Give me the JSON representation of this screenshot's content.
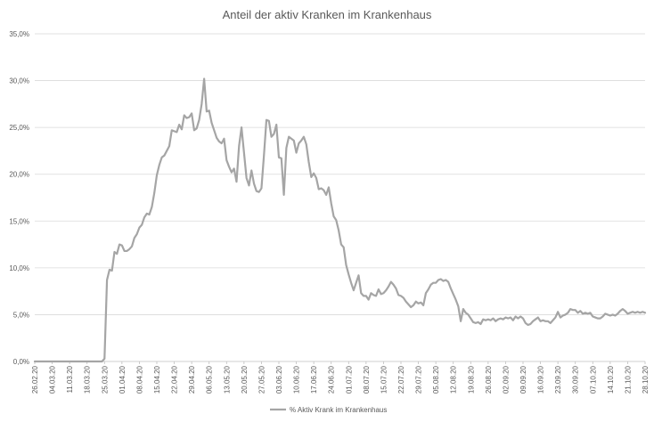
{
  "chart_data": {
    "type": "line",
    "title": "Anteil der aktiv Kranken im Krankenhaus",
    "xlabel": "",
    "ylabel": "",
    "ylim": [
      0,
      35
    ],
    "y_ticks": [
      "0,0%",
      "5,0%",
      "10,0%",
      "15,0%",
      "20,0%",
      "25,0%",
      "30,0%",
      "35,0%"
    ],
    "y_tick_values": [
      0,
      5,
      10,
      15,
      20,
      25,
      30,
      35
    ],
    "x_start": "2020-02-26",
    "x_end": "2020-10-28",
    "x_tick_dates": [
      "2020-02-26",
      "2020-03-04",
      "2020-03-11",
      "2020-03-18",
      "2020-03-25",
      "2020-04-01",
      "2020-04-08",
      "2020-04-15",
      "2020-04-22",
      "2020-04-29",
      "2020-05-06",
      "2020-05-13",
      "2020-05-20",
      "2020-05-27",
      "2020-06-03",
      "2020-06-10",
      "2020-06-17",
      "2020-06-24",
      "2020-07-01",
      "2020-07-08",
      "2020-07-15",
      "2020-07-22",
      "2020-07-29",
      "2020-08-05",
      "2020-08-12",
      "2020-08-19",
      "2020-08-26",
      "2020-09-02",
      "2020-09-09",
      "2020-09-16",
      "2020-09-23",
      "2020-09-30",
      "2020-10-07",
      "2020-10-14",
      "2020-10-21",
      "2020-10-28"
    ],
    "x_tick_labels": [
      "26.02.20",
      "04.03.20",
      "11.03.20",
      "18.03.20",
      "25.03.20",
      "01.04.20",
      "08.04.20",
      "15.04.20",
      "22.04.20",
      "29.04.20",
      "06.05.20",
      "13.05.20",
      "20.05.20",
      "27.05.20",
      "03.06.20",
      "10.06.20",
      "17.06.20",
      "24.06.20",
      "01.07.20",
      "08.07.20",
      "15.07.20",
      "22.07.20",
      "29.07.20",
      "05.08.20",
      "12.08.20",
      "19.08.20",
      "26.08.20",
      "02.09.20",
      "09.09.20",
      "16.09.20",
      "23.09.20",
      "30.09.20",
      "07.10.20",
      "14.10.20",
      "21.10.20",
      "28.10.20"
    ],
    "grid": true,
    "legend_position": "bottom",
    "series": [
      {
        "name": "% Aktiv Krank im Krankenhaus",
        "color": "#a5a5a5",
        "points": [
          [
            "2020-02-26",
            0.0
          ],
          [
            "2020-03-24",
            0.0
          ],
          [
            "2020-03-25",
            0.3
          ],
          [
            "2020-03-26",
            8.7
          ],
          [
            "2020-03-27",
            9.8
          ],
          [
            "2020-03-28",
            9.7
          ],
          [
            "2020-03-29",
            11.7
          ],
          [
            "2020-03-30",
            11.5
          ],
          [
            "2020-03-31",
            12.5
          ],
          [
            "2020-04-01",
            12.4
          ],
          [
            "2020-04-02",
            11.8
          ],
          [
            "2020-04-03",
            11.8
          ],
          [
            "2020-04-04",
            12.0
          ],
          [
            "2020-04-05",
            12.3
          ],
          [
            "2020-04-06",
            13.2
          ],
          [
            "2020-04-07",
            13.6
          ],
          [
            "2020-04-08",
            14.3
          ],
          [
            "2020-04-09",
            14.6
          ],
          [
            "2020-04-10",
            15.4
          ],
          [
            "2020-04-11",
            15.8
          ],
          [
            "2020-04-12",
            15.7
          ],
          [
            "2020-04-13",
            16.5
          ],
          [
            "2020-04-14",
            18.0
          ],
          [
            "2020-04-15",
            19.9
          ],
          [
            "2020-04-16",
            21.0
          ],
          [
            "2020-04-17",
            21.8
          ],
          [
            "2020-04-18",
            22.0
          ],
          [
            "2020-04-19",
            22.5
          ],
          [
            "2020-04-20",
            23.0
          ],
          [
            "2020-04-21",
            24.7
          ],
          [
            "2020-04-22",
            24.6
          ],
          [
            "2020-04-23",
            24.5
          ],
          [
            "2020-04-24",
            25.3
          ],
          [
            "2020-04-25",
            24.8
          ],
          [
            "2020-04-26",
            26.3
          ],
          [
            "2020-04-27",
            26.0
          ],
          [
            "2020-04-28",
            26.1
          ],
          [
            "2020-04-29",
            26.5
          ],
          [
            "2020-04-30",
            24.7
          ],
          [
            "2020-05-01",
            24.9
          ],
          [
            "2020-05-02",
            25.8
          ],
          [
            "2020-05-03",
            27.5
          ],
          [
            "2020-05-04",
            30.2
          ],
          [
            "2020-05-05",
            26.7
          ],
          [
            "2020-05-06",
            26.8
          ],
          [
            "2020-05-07",
            25.5
          ],
          [
            "2020-05-08",
            24.7
          ],
          [
            "2020-05-09",
            23.9
          ],
          [
            "2020-05-10",
            23.5
          ],
          [
            "2020-05-11",
            23.3
          ],
          [
            "2020-05-12",
            23.8
          ],
          [
            "2020-05-13",
            21.5
          ],
          [
            "2020-05-14",
            20.8
          ],
          [
            "2020-05-15",
            20.2
          ],
          [
            "2020-05-16",
            20.6
          ],
          [
            "2020-05-17",
            19.2
          ],
          [
            "2020-05-18",
            23.0
          ],
          [
            "2020-05-19",
            25.0
          ],
          [
            "2020-05-20",
            22.3
          ],
          [
            "2020-05-21",
            19.6
          ],
          [
            "2020-05-22",
            18.8
          ],
          [
            "2020-05-23",
            20.4
          ],
          [
            "2020-05-24",
            19.0
          ],
          [
            "2020-05-25",
            18.2
          ],
          [
            "2020-05-26",
            18.1
          ],
          [
            "2020-05-27",
            18.5
          ],
          [
            "2020-05-28",
            22.0
          ],
          [
            "2020-05-29",
            25.8
          ],
          [
            "2020-05-30",
            25.7
          ],
          [
            "2020-05-31",
            24.0
          ],
          [
            "2020-06-01",
            24.3
          ],
          [
            "2020-06-02",
            25.3
          ],
          [
            "2020-06-03",
            21.8
          ],
          [
            "2020-06-04",
            21.7
          ],
          [
            "2020-06-05",
            17.8
          ],
          [
            "2020-06-06",
            22.8
          ],
          [
            "2020-06-07",
            24.0
          ],
          [
            "2020-06-08",
            23.8
          ],
          [
            "2020-06-09",
            23.6
          ],
          [
            "2020-06-10",
            22.3
          ],
          [
            "2020-06-11",
            23.3
          ],
          [
            "2020-06-12",
            23.6
          ],
          [
            "2020-06-13",
            24.0
          ],
          [
            "2020-06-14",
            23.2
          ],
          [
            "2020-06-15",
            21.3
          ],
          [
            "2020-06-16",
            19.7
          ],
          [
            "2020-06-17",
            20.1
          ],
          [
            "2020-06-18",
            19.6
          ],
          [
            "2020-06-19",
            18.4
          ],
          [
            "2020-06-20",
            18.5
          ],
          [
            "2020-06-21",
            18.3
          ],
          [
            "2020-06-22",
            17.8
          ],
          [
            "2020-06-23",
            18.6
          ],
          [
            "2020-06-24",
            16.9
          ],
          [
            "2020-06-25",
            15.5
          ],
          [
            "2020-06-26",
            15.1
          ],
          [
            "2020-06-27",
            14.0
          ],
          [
            "2020-06-28",
            12.5
          ],
          [
            "2020-06-29",
            12.2
          ],
          [
            "2020-06-30",
            10.3
          ],
          [
            "2020-07-01",
            9.3
          ],
          [
            "2020-07-02",
            8.4
          ],
          [
            "2020-07-03",
            7.6
          ],
          [
            "2020-07-04",
            8.4
          ],
          [
            "2020-07-05",
            9.2
          ],
          [
            "2020-07-06",
            7.3
          ],
          [
            "2020-07-07",
            7.0
          ],
          [
            "2020-07-08",
            7.0
          ],
          [
            "2020-07-09",
            6.6
          ],
          [
            "2020-07-10",
            7.3
          ],
          [
            "2020-07-11",
            7.1
          ],
          [
            "2020-07-12",
            7.0
          ],
          [
            "2020-07-13",
            7.7
          ],
          [
            "2020-07-14",
            7.2
          ],
          [
            "2020-07-15",
            7.3
          ],
          [
            "2020-07-16",
            7.6
          ],
          [
            "2020-07-17",
            8.0
          ],
          [
            "2020-07-18",
            8.5
          ],
          [
            "2020-07-19",
            8.2
          ],
          [
            "2020-07-20",
            7.8
          ],
          [
            "2020-07-21",
            7.1
          ],
          [
            "2020-07-22",
            7.0
          ],
          [
            "2020-07-23",
            6.8
          ],
          [
            "2020-07-24",
            6.4
          ],
          [
            "2020-07-25",
            6.1
          ],
          [
            "2020-07-26",
            5.8
          ],
          [
            "2020-07-27",
            6.0
          ],
          [
            "2020-07-28",
            6.4
          ],
          [
            "2020-07-29",
            6.2
          ],
          [
            "2020-07-30",
            6.3
          ],
          [
            "2020-07-31",
            6.0
          ],
          [
            "2020-08-01",
            7.3
          ],
          [
            "2020-08-02",
            7.7
          ],
          [
            "2020-08-03",
            8.2
          ],
          [
            "2020-08-04",
            8.4
          ],
          [
            "2020-08-05",
            8.4
          ],
          [
            "2020-08-06",
            8.7
          ],
          [
            "2020-08-07",
            8.8
          ],
          [
            "2020-08-08",
            8.6
          ],
          [
            "2020-08-09",
            8.7
          ],
          [
            "2020-08-10",
            8.5
          ],
          [
            "2020-08-11",
            7.8
          ],
          [
            "2020-08-12",
            7.2
          ],
          [
            "2020-08-13",
            6.6
          ],
          [
            "2020-08-14",
            5.9
          ],
          [
            "2020-08-15",
            4.3
          ],
          [
            "2020-08-16",
            5.6
          ],
          [
            "2020-08-17",
            5.2
          ],
          [
            "2020-08-18",
            5.0
          ],
          [
            "2020-08-19",
            4.6
          ],
          [
            "2020-08-20",
            4.2
          ],
          [
            "2020-08-21",
            4.1
          ],
          [
            "2020-08-22",
            4.2
          ],
          [
            "2020-08-23",
            4.0
          ],
          [
            "2020-08-24",
            4.5
          ],
          [
            "2020-08-25",
            4.4
          ],
          [
            "2020-08-26",
            4.5
          ],
          [
            "2020-08-27",
            4.4
          ],
          [
            "2020-08-28",
            4.6
          ],
          [
            "2020-08-29",
            4.3
          ],
          [
            "2020-08-30",
            4.5
          ],
          [
            "2020-08-31",
            4.6
          ],
          [
            "2020-09-01",
            4.5
          ],
          [
            "2020-09-02",
            4.7
          ],
          [
            "2020-09-03",
            4.6
          ],
          [
            "2020-09-04",
            4.7
          ],
          [
            "2020-09-05",
            4.4
          ],
          [
            "2020-09-06",
            4.8
          ],
          [
            "2020-09-07",
            4.6
          ],
          [
            "2020-09-08",
            4.8
          ],
          [
            "2020-09-09",
            4.6
          ],
          [
            "2020-09-10",
            4.1
          ],
          [
            "2020-09-11",
            3.9
          ],
          [
            "2020-09-12",
            4.0
          ],
          [
            "2020-09-13",
            4.3
          ],
          [
            "2020-09-14",
            4.5
          ],
          [
            "2020-09-15",
            4.7
          ],
          [
            "2020-09-16",
            4.3
          ],
          [
            "2020-09-17",
            4.4
          ],
          [
            "2020-09-18",
            4.3
          ],
          [
            "2020-09-19",
            4.3
          ],
          [
            "2020-09-20",
            4.1
          ],
          [
            "2020-09-21",
            4.4
          ],
          [
            "2020-09-22",
            4.7
          ],
          [
            "2020-09-23",
            5.3
          ],
          [
            "2020-09-24",
            4.7
          ],
          [
            "2020-09-25",
            4.9
          ],
          [
            "2020-09-26",
            5.0
          ],
          [
            "2020-09-27",
            5.2
          ],
          [
            "2020-09-28",
            5.6
          ],
          [
            "2020-09-29",
            5.5
          ],
          [
            "2020-09-30",
            5.5
          ],
          [
            "2020-10-01",
            5.2
          ],
          [
            "2020-10-02",
            5.4
          ],
          [
            "2020-10-03",
            5.1
          ],
          [
            "2020-10-04",
            5.2
          ],
          [
            "2020-10-05",
            5.1
          ],
          [
            "2020-10-06",
            5.2
          ],
          [
            "2020-10-07",
            4.8
          ],
          [
            "2020-10-08",
            4.7
          ],
          [
            "2020-10-09",
            4.6
          ],
          [
            "2020-10-10",
            4.6
          ],
          [
            "2020-10-11",
            4.8
          ],
          [
            "2020-10-12",
            5.1
          ],
          [
            "2020-10-13",
            5.0
          ],
          [
            "2020-10-14",
            4.9
          ],
          [
            "2020-10-15",
            5.0
          ],
          [
            "2020-10-16",
            4.9
          ],
          [
            "2020-10-17",
            5.1
          ],
          [
            "2020-10-18",
            5.4
          ],
          [
            "2020-10-19",
            5.6
          ],
          [
            "2020-10-20",
            5.4
          ],
          [
            "2020-10-21",
            5.1
          ],
          [
            "2020-10-22",
            5.2
          ],
          [
            "2020-10-23",
            5.3
          ],
          [
            "2020-10-24",
            5.2
          ],
          [
            "2020-10-25",
            5.3
          ],
          [
            "2020-10-26",
            5.2
          ],
          [
            "2020-10-27",
            5.3
          ],
          [
            "2020-10-28",
            5.2
          ]
        ]
      }
    ]
  }
}
